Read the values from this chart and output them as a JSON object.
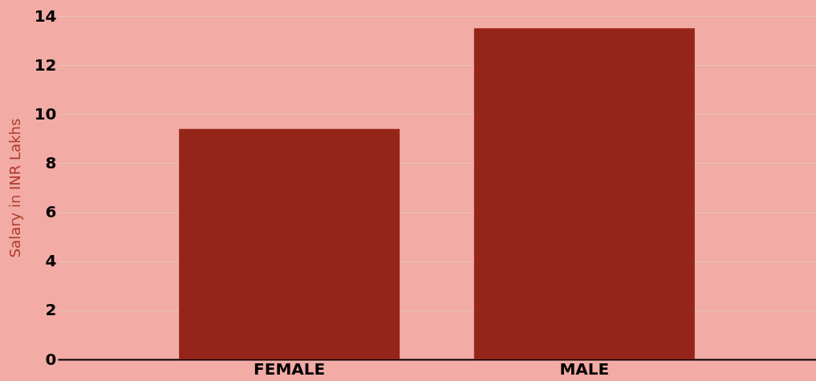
{
  "chart_data": {
    "type": "bar",
    "ylabel": "Salary in INR Lakhs",
    "categories": [
      "FEMALE",
      "MALE"
    ],
    "values": [
      9.4,
      13.5
    ],
    "color": "#962519",
    "ylim": [
      0,
      14
    ],
    "yticks": [
      0,
      2,
      4,
      6,
      8,
      10,
      12,
      14
    ],
    "grid": "y"
  }
}
